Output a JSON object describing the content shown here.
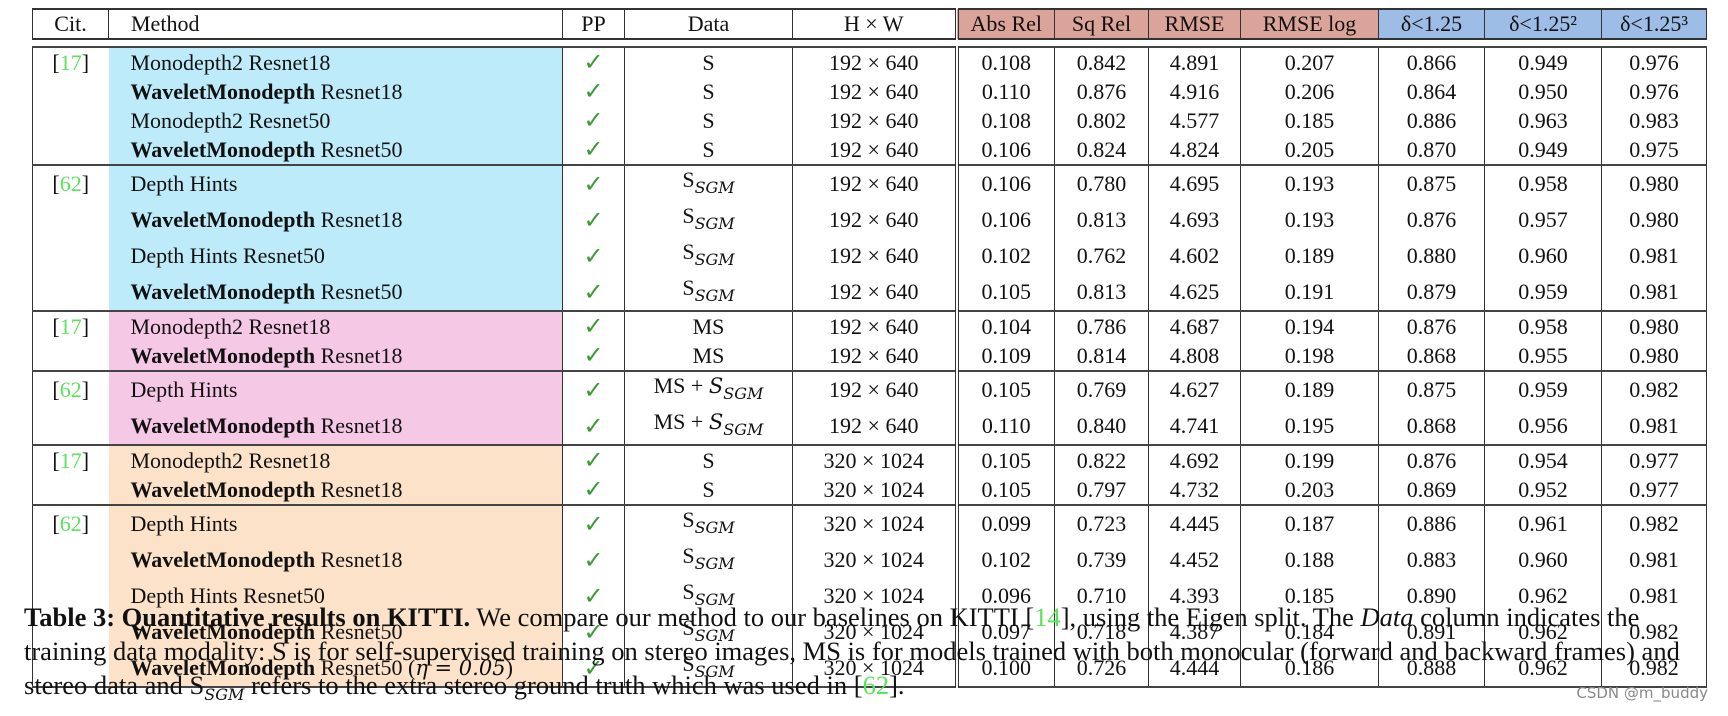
{
  "table": {
    "headers": [
      "Cit.",
      "Method",
      "PP",
      "Data",
      "H × W",
      "Abs Rel",
      "Sq Rel",
      "RMSE",
      "RMSE log",
      "δ<1.25",
      "δ<1.25²",
      "δ<1.25³"
    ],
    "header_colors": {
      "error_metrics": "#dba49a",
      "accuracy_metrics": "#9dbde6"
    },
    "group_colors": {
      "blue": "#bdebfa",
      "pink": "#f5c8e6",
      "orange": "#fce2c8"
    },
    "check_color": "#3a9a32",
    "cite_color": "#5be35b",
    "rows": [
      {
        "cit": "17",
        "method_bold": "",
        "method": "Monodepth2 Resnet18",
        "pp": "✓",
        "data": "S",
        "hw": "192 × 640",
        "abs_rel": "0.108",
        "sq_rel": "0.842",
        "rmse": "4.891",
        "rmse_log": "0.207",
        "d1": "0.866",
        "d2": "0.949",
        "d3": "0.976"
      },
      {
        "cit": "",
        "method_bold": "WaveletMonodepth",
        "method": " Resnet18",
        "pp": "✓",
        "data": "S",
        "hw": "192 × 640",
        "abs_rel": "0.110",
        "sq_rel": "0.876",
        "rmse": "4.916",
        "rmse_log": "0.206",
        "d1": "0.864",
        "d2": "0.950",
        "d3": "0.976"
      },
      {
        "cit": "",
        "method_bold": "",
        "method": "Monodepth2 Resnet50",
        "pp": "✓",
        "data": "S",
        "hw": "192 × 640",
        "abs_rel": "0.108",
        "sq_rel": "0.802",
        "rmse": "4.577",
        "rmse_log": "0.185",
        "d1": "0.886",
        "d2": "0.963",
        "d3": "0.983"
      },
      {
        "cit": "",
        "method_bold": "WaveletMonodepth",
        "method": " Resnet50",
        "pp": "✓",
        "data": "S",
        "hw": "192 × 640",
        "abs_rel": "0.106",
        "sq_rel": "0.824",
        "rmse": "4.824",
        "rmse_log": "0.205",
        "d1": "0.870",
        "d2": "0.949",
        "d3": "0.975"
      },
      {
        "cit": "62",
        "method_bold": "",
        "method": "Depth Hints",
        "pp": "✓",
        "data": "S",
        "data_sub": "SGM",
        "hw": "192 × 640",
        "abs_rel": "0.106",
        "sq_rel": "0.780",
        "rmse": "4.695",
        "rmse_log": "0.193",
        "d1": "0.875",
        "d2": "0.958",
        "d3": "0.980"
      },
      {
        "cit": "",
        "method_bold": "WaveletMonodepth",
        "method": " Resnet18",
        "pp": "✓",
        "data": "S",
        "data_sub": "SGM",
        "hw": "192 × 640",
        "abs_rel": "0.106",
        "sq_rel": "0.813",
        "rmse": "4.693",
        "rmse_log": "0.193",
        "d1": "0.876",
        "d2": "0.957",
        "d3": "0.980"
      },
      {
        "cit": "",
        "method_bold": "",
        "method": "Depth Hints Resnet50",
        "pp": "✓",
        "data": "S",
        "data_sub": "SGM",
        "hw": "192 × 640",
        "abs_rel": "0.102",
        "sq_rel": "0.762",
        "rmse": "4.602",
        "rmse_log": "0.189",
        "d1": "0.880",
        "d2": "0.960",
        "d3": "0.981"
      },
      {
        "cit": "",
        "method_bold": "WaveletMonodepth",
        "method": " Resnet50",
        "pp": "✓",
        "data": "S",
        "data_sub": "SGM",
        "hw": "192 × 640",
        "abs_rel": "0.105",
        "sq_rel": "0.813",
        "rmse": "4.625",
        "rmse_log": "0.191",
        "d1": "0.879",
        "d2": "0.959",
        "d3": "0.981"
      },
      {
        "cit": "17",
        "method_bold": "",
        "method": "Monodepth2 Resnet18",
        "pp": "✓",
        "data": "MS",
        "hw": "192 × 640",
        "abs_rel": "0.104",
        "sq_rel": "0.786",
        "rmse": "4.687",
        "rmse_log": "0.194",
        "d1": "0.876",
        "d2": "0.958",
        "d3": "0.980"
      },
      {
        "cit": "",
        "method_bold": "WaveletMonodepth",
        "method": " Resnet18",
        "pp": "✓",
        "data": "MS",
        "hw": "192 × 640",
        "abs_rel": "0.109",
        "sq_rel": "0.814",
        "rmse": "4.808",
        "rmse_log": "0.198",
        "d1": "0.868",
        "d2": "0.955",
        "d3": "0.980"
      },
      {
        "cit": "62",
        "method_bold": "",
        "method": "Depth Hints",
        "pp": "✓",
        "data": "MS + ",
        "data_italic": "S",
        "data_sub": "SGM",
        "hw": "192 × 640",
        "abs_rel": "0.105",
        "sq_rel": "0.769",
        "rmse": "4.627",
        "rmse_log": "0.189",
        "d1": "0.875",
        "d2": "0.959",
        "d3": "0.982"
      },
      {
        "cit": "",
        "method_bold": "WaveletMonodepth",
        "method": " Resnet18",
        "pp": "✓",
        "data": "MS + ",
        "data_italic": "S",
        "data_sub": "SGM",
        "hw": "192 × 640",
        "abs_rel": "0.110",
        "sq_rel": "0.840",
        "rmse": "4.741",
        "rmse_log": "0.195",
        "d1": "0.868",
        "d2": "0.956",
        "d3": "0.981"
      },
      {
        "cit": "17",
        "method_bold": "",
        "method": "Monodepth2 Resnet18",
        "pp": "✓",
        "data": "S",
        "hw": "320 × 1024",
        "abs_rel": "0.105",
        "sq_rel": "0.822",
        "rmse": "4.692",
        "rmse_log": "0.199",
        "d1": "0.876",
        "d2": "0.954",
        "d3": "0.977"
      },
      {
        "cit": "",
        "method_bold": "WaveletMonodepth",
        "method": " Resnet18",
        "pp": "✓",
        "data": "S",
        "hw": "320 × 1024",
        "abs_rel": "0.105",
        "sq_rel": "0.797",
        "rmse": "4.732",
        "rmse_log": "0.203",
        "d1": "0.869",
        "d2": "0.952",
        "d3": "0.977"
      },
      {
        "cit": "62",
        "method_bold": "",
        "method": "Depth Hints",
        "pp": "✓",
        "data": "S",
        "data_sub": "SGM",
        "hw": "320 × 1024",
        "abs_rel": "0.099",
        "sq_rel": "0.723",
        "rmse": "4.445",
        "rmse_log": "0.187",
        "d1": "0.886",
        "d2": "0.961",
        "d3": "0.982"
      },
      {
        "cit": "",
        "method_bold": "WaveletMonodepth",
        "method": " Resnet18",
        "pp": "✓",
        "data": "S",
        "data_sub": "SGM",
        "hw": "320 × 1024",
        "abs_rel": "0.102",
        "sq_rel": "0.739",
        "rmse": "4.452",
        "rmse_log": "0.188",
        "d1": "0.883",
        "d2": "0.960",
        "d3": "0.981"
      },
      {
        "cit": "",
        "method_bold": "",
        "method": "Depth Hints Resnet50",
        "pp": "✓",
        "data": "S",
        "data_sub": "SGM",
        "hw": "320 × 1024",
        "abs_rel": "0.096",
        "sq_rel": "0.710",
        "rmse": "4.393",
        "rmse_log": "0.185",
        "d1": "0.890",
        "d2": "0.962",
        "d3": "0.981"
      },
      {
        "cit": "",
        "method_bold": "WaveletMonodepth",
        "method": " Resnet50",
        "pp": "✓",
        "data": "S",
        "data_sub": "SGM",
        "hw": "320 × 1024",
        "abs_rel": "0.097",
        "sq_rel": "0.718",
        "rmse": "4.387",
        "rmse_log": "0.184",
        "d1": "0.891",
        "d2": "0.962",
        "d3": "0.982"
      },
      {
        "cit": "",
        "method_bold": "WaveletMonodepth",
        "method": " Resnet50 (",
        "method_eta": "η = 0.05",
        "method_end": ")",
        "pp": "✓",
        "data": "S",
        "data_sub": "SGM",
        "hw": "320 × 1024",
        "abs_rel": "0.100",
        "sq_rel": "0.726",
        "rmse": "4.444",
        "rmse_log": "0.186",
        "d1": "0.888",
        "d2": "0.962",
        "d3": "0.982"
      }
    ],
    "bold_cells": {
      "16": [
        "abs_rel",
        "sq_rel",
        "d2"
      ],
      "17": [
        "rmse",
        "rmse_log",
        "d1",
        "d2",
        "d3"
      ],
      "18": [
        "d2",
        "d3"
      ]
    }
  },
  "caption": {
    "label": "Table 3: Quantitative results on KITTI.",
    "text1": " We compare our method to our baselines on KITTI [",
    "cite1": "14",
    "text2": "], using the Eigen split. The ",
    "italic": "Data",
    "text3": " column indicates the training data modality: S is for self-supervised training on stereo images, MS is for models trained with both monocular (forward and backward frames) and stereo data and S",
    "sub": "SGM",
    "text4": " refers to the extra stereo ground truth which was used in  [",
    "cite2": "62",
    "text5": "]."
  },
  "watermark": "CSDN @m_buddy"
}
